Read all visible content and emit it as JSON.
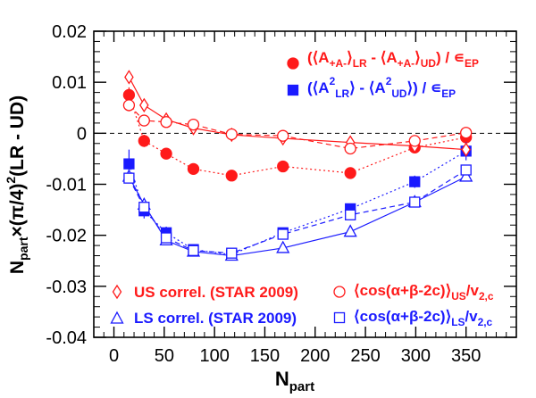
{
  "chart_data": {
    "type": "scatter",
    "xlabel": {
      "main": "N",
      "sub": "part"
    },
    "ylabel": "N_part×(π/4)²(LR - UD)",
    "xlim": [
      -20,
      400
    ],
    "ylim": [
      -0.04,
      0.02
    ],
    "xticks": [
      0,
      50,
      100,
      150,
      200,
      250,
      300,
      350
    ],
    "xtick_labels": [
      "0",
      "50",
      "100",
      "150",
      "200",
      "250",
      "300",
      "350"
    ],
    "yticks": [
      -0.04,
      -0.03,
      -0.02,
      -0.01,
      0,
      0.01,
      0.02
    ],
    "ytick_labels": [
      "-0.04",
      "-0.03",
      "-0.02",
      "-0.01",
      "0",
      "0.01",
      "0.02"
    ],
    "colors": {
      "red": "#ff1a1a",
      "blue": "#1a1aff",
      "axis": "#000000"
    },
    "series": [
      {
        "marker": "filled-circle",
        "color": "#ff1a1a",
        "line": "dotted",
        "x": [
          15,
          30,
          52,
          79,
          117,
          168,
          235,
          299,
          350
        ],
        "y": [
          0.0075,
          -0.0015,
          -0.004,
          -0.007,
          -0.0083,
          -0.0065,
          -0.0078,
          -0.0028,
          -0.0008
        ],
        "err": [
          0.0015,
          0.0012,
          0.001,
          0.001,
          0.0008,
          0.0008,
          0.0009,
          0.001,
          0.0015
        ]
      },
      {
        "marker": "filled-square",
        "color": "#1a1aff",
        "line": "dotted",
        "x": [
          15,
          30,
          52,
          79,
          117,
          168,
          235,
          299,
          350
        ],
        "y": [
          -0.006,
          -0.0152,
          -0.0195,
          -0.0228,
          -0.0238,
          -0.0195,
          -0.0148,
          -0.0095,
          -0.0035
        ],
        "err": [
          0.0028,
          0.0015,
          0.0012,
          0.001,
          0.0008,
          0.0008,
          0.0008,
          0.0012,
          0.0018
        ]
      },
      {
        "marker": "open-diamond",
        "color": "#ff1a1a",
        "line": "solid",
        "x": [
          15,
          30,
          52,
          79,
          117,
          168,
          235,
          299,
          350
        ],
        "y": [
          0.011,
          0.0055,
          0.0027,
          0.001,
          -0.0003,
          -0.001,
          -0.0018,
          -0.0025,
          -0.0032
        ],
        "err": [
          0.001,
          0.0005,
          0.0004,
          0.0003,
          0.0003,
          0.0003,
          0.0003,
          0.0003,
          0.0003
        ]
      },
      {
        "marker": "open-triangle",
        "color": "#1a1aff",
        "line": "solid",
        "x": [
          15,
          30,
          52,
          79,
          117,
          168,
          235,
          299,
          350
        ],
        "y": [
          -0.0085,
          -0.014,
          -0.021,
          -0.0232,
          -0.024,
          -0.0225,
          -0.0193,
          -0.0135,
          -0.0085
        ],
        "err": [
          0.0005,
          0.0005,
          0.0004,
          0.0003,
          0.0003,
          0.0003,
          0.0003,
          0.0003,
          0.0004
        ]
      },
      {
        "marker": "open-circle",
        "color": "#ff1a1a",
        "line": "dashed",
        "x": [
          15,
          30,
          52,
          79,
          117,
          168,
          235,
          299,
          350
        ],
        "y": [
          0.0055,
          0.0025,
          0.0022,
          0.0017,
          -0.0002,
          -0.0005,
          -0.003,
          -0.0015,
          0.0001
        ],
        "err": [
          0.0012,
          0.0005,
          0.0004,
          0.0003,
          0.0003,
          0.0003,
          0.0003,
          0.0004,
          0.0005
        ]
      },
      {
        "marker": "open-square",
        "color": "#1a1aff",
        "line": "dashed",
        "x": [
          15,
          30,
          52,
          79,
          117,
          168,
          235,
          299,
          350
        ],
        "y": [
          -0.0088,
          -0.0145,
          -0.0205,
          -0.023,
          -0.0235,
          -0.0198,
          -0.016,
          -0.0135,
          -0.0072
        ],
        "err": [
          0.0008,
          0.0006,
          0.0005,
          0.0004,
          0.0003,
          0.0003,
          0.0004,
          0.0005,
          0.0008
        ]
      }
    ],
    "legend": {
      "top": [
        {
          "marker": "filled-circle",
          "color": "#ff1a1a",
          "parts": [
            "(⟨A",
            "+",
            "A",
            "-",
            "⟩",
            "LR",
            " - ⟨A",
            "+",
            "A",
            "-",
            "⟩",
            "UD",
            ") / ∊",
            "EP"
          ]
        },
        {
          "marker": "filled-square",
          "color": "#1a1aff",
          "parts": [
            "(⟨A",
            "2",
            "LR",
            "⟩ - ⟨A",
            "2",
            "UD",
            "⟩) / ∊",
            "EP"
          ]
        }
      ],
      "bottom": [
        {
          "marker": "open-diamond",
          "color": "#ff1a1a",
          "text": "US correl. (STAR 2009)"
        },
        {
          "marker": "open-triangle",
          "color": "#1a1aff",
          "text": "LS correl. (STAR 2009)"
        },
        {
          "marker": "open-circle",
          "color": "#ff1a1a",
          "parts": [
            "⟨cos(α+β-2c)⟩",
            "US",
            "/v",
            "2,c"
          ]
        },
        {
          "marker": "open-square",
          "color": "#1a1aff",
          "parts": [
            "⟨cos(α+β-2c)⟩",
            "LS",
            "/v",
            "2,c"
          ]
        }
      ]
    }
  }
}
